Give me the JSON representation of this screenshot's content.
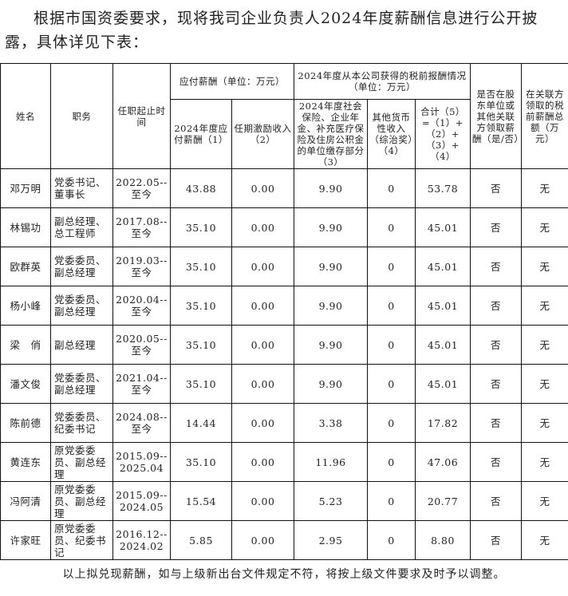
{
  "intro": "根据市国资委要求，现将我司企业负责人2024年度薪酬信息进行公开披露，具体详见下表：",
  "headers": {
    "name": "姓名",
    "position": "职务",
    "term": "任职起止时间",
    "payable_group": "应付薪酬（单位：万元）",
    "pretax_group": "2024年度从本公司获得的税前报酬情况（单位：万元）",
    "c1": "2024年度应付薪酬（1）",
    "c2": "任期激励收入（2）",
    "c3": "2024年度社会保险、企业年金、补充医疗保险及住房公积金的单位缴存部分（3）",
    "c4": "其他货币性收入（综治奖）（4）",
    "c5": "合计（5）=（1）+（2）+（3）+（4）",
    "related": "是否在股东单位或其他关联方领取薪酬（是/否）",
    "related_total": "在关联方领取的税前薪酬总额（万元）"
  },
  "rows": [
    {
      "name": "邓万明",
      "position": "党委书记、董事长",
      "term": "2022.05--至今",
      "c1": "43.88",
      "c2": "0.00",
      "c3": "9.90",
      "c4": "0",
      "c5": "53.78",
      "related": "否",
      "related_total": "无"
    },
    {
      "name": "林锡功",
      "position": "副总经理、总工程师",
      "term": "2017.08--至今",
      "c1": "35.10",
      "c2": "0.00",
      "c3": "9.90",
      "c4": "0",
      "c5": "45.01",
      "related": "否",
      "related_total": "无"
    },
    {
      "name": "欧群英",
      "position": "党委委员、副总经理",
      "term": "2019.03--至今",
      "c1": "35.10",
      "c2": "0.00",
      "c3": "9.90",
      "c4": "0",
      "c5": "45.01",
      "related": "否",
      "related_total": "无"
    },
    {
      "name": "杨小峰",
      "position": "党委委员、副总经理",
      "term": "2020.04--至今",
      "c1": "35.10",
      "c2": "0.00",
      "c3": "9.90",
      "c4": "0",
      "c5": "45.01",
      "related": "否",
      "related_total": "无"
    },
    {
      "name": "梁　俏",
      "position": "副总经理",
      "term": "2020.05--至今",
      "c1": "35.10",
      "c2": "0.00",
      "c3": "9.90",
      "c4": "0",
      "c5": "45.01",
      "related": "否",
      "related_total": "无"
    },
    {
      "name": "潘文俊",
      "position": "党委委员、副总经理",
      "term": "2021.04--至今",
      "c1": "35.10",
      "c2": "0.00",
      "c3": "9.90",
      "c4": "0",
      "c5": "45.01",
      "related": "否",
      "related_total": "无"
    },
    {
      "name": "陈前德",
      "position": "党委委员、纪委书记",
      "term": "2024.08--至今",
      "c1": "14.44",
      "c2": "0.00",
      "c3": "3.38",
      "c4": "0",
      "c5": "17.82",
      "related": "否",
      "related_total": "无"
    },
    {
      "name": "黄连东",
      "position": "原党委委员、副总经理",
      "term": "2015.09--2025.04",
      "c1": "35.10",
      "c2": "0.00",
      "c3": "11.96",
      "c4": "0",
      "c5": "47.06",
      "related": "否",
      "related_total": "无"
    },
    {
      "name": "冯阿清",
      "position": "原党委委员、副总经理",
      "term": "2015.09--2024.05",
      "c1": "15.54",
      "c2": "0.00",
      "c3": "5.23",
      "c4": "0",
      "c5": "20.77",
      "related": "否",
      "related_total": "无"
    },
    {
      "name": "许家旺",
      "position": "原党委委员、纪委书记",
      "term": "2016.12--2024.02",
      "c1": "5.85",
      "c2": "0.00",
      "c3": "2.95",
      "c4": "0",
      "c5": "8.80",
      "related": "否",
      "related_total": "无"
    }
  ],
  "footer": "以上拟兑现薪酬，如与上级新出台文件规定不符，将按上级文件要求及时予以调整。"
}
